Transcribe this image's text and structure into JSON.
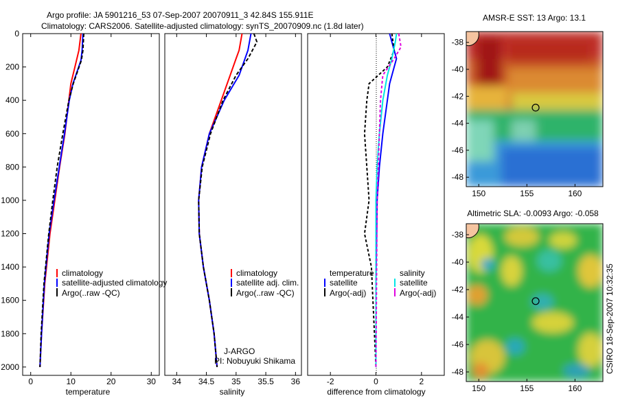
{
  "title": {
    "line1": "Argo profile: JA 5901216_53 07-Sep-2007 20070911_3 42.84S 155.911E",
    "line2": "Climatology: CARS2006. Satellite-adjusted climatology: synTS_20070909.nc (1.8d later)"
  },
  "side_text": "CSIRO 18-Sep-2007 10:32:35",
  "colors": {
    "climatology": "#ff0000",
    "satellite": "#0000ff",
    "argo": "#000000",
    "salinity_satellite": "#00e5e5",
    "salinity_argo": "#e000e0"
  },
  "chart_data": [
    {
      "type": "line",
      "xlabel": "temperature",
      "ylabel": "",
      "xlim": [
        -2,
        32
      ],
      "ylim": [
        2050,
        0
      ],
      "xticks": [
        0,
        10,
        20,
        30
      ],
      "yticks": [
        0,
        200,
        400,
        600,
        800,
        1000,
        1200,
        1400,
        1600,
        1800,
        2000
      ],
      "legend": [
        "climatology",
        "satellite-adjusted climatology",
        "Argo(..raw -QC)"
      ],
      "series": [
        {
          "name": "climatology",
          "color": "#ff0000",
          "dash": "",
          "x": [
            12.5,
            12.0,
            11.0,
            10.0,
            9.5,
            8.5,
            7.2,
            6.0,
            4.8,
            3.5,
            2.7,
            2.3
          ],
          "y": [
            0,
            100,
            200,
            300,
            400,
            600,
            800,
            1000,
            1200,
            1500,
            1800,
            2000
          ]
        },
        {
          "name": "satellite-adjusted climatology",
          "color": "#0000ff",
          "dash": "",
          "x": [
            13.0,
            12.8,
            12.5,
            10.5,
            9.6,
            8.4,
            7.1,
            5.8,
            4.6,
            3.4,
            2.7,
            2.3
          ],
          "y": [
            0,
            100,
            160,
            300,
            400,
            600,
            800,
            1000,
            1200,
            1500,
            1800,
            2000
          ]
        },
        {
          "name": "Argo(..raw -QC)",
          "color": "#000000",
          "dash": "5,3",
          "x": [
            13.2,
            13.0,
            12.6,
            10.6,
            9.5,
            8.0,
            6.6,
            5.5,
            4.5,
            3.3,
            2.6,
            2.3
          ],
          "y": [
            0,
            100,
            160,
            300,
            400,
            600,
            800,
            1000,
            1200,
            1500,
            1800,
            2000
          ]
        }
      ]
    },
    {
      "type": "line",
      "xlabel": "salinity",
      "ylabel": "",
      "xlim": [
        33.8,
        36.1
      ],
      "ylim": [
        2050,
        0
      ],
      "xticks": [
        34,
        34.5,
        35,
        35.5,
        36
      ],
      "legend": [
        "climatology",
        "satellite adj. clim.",
        "Argo(..raw -QC)"
      ],
      "annotation": [
        "J-ARGO",
        "PI: Nobuyuki Shikama"
      ],
      "series": [
        {
          "name": "climatology",
          "color": "#ff0000",
          "dash": "",
          "x": [
            35.1,
            35.05,
            35.0,
            34.9,
            34.75,
            34.55,
            34.42,
            34.37,
            34.38,
            34.45,
            34.55,
            34.63,
            34.68
          ],
          "y": [
            0,
            100,
            150,
            250,
            400,
            600,
            800,
            1000,
            1200,
            1400,
            1600,
            1800,
            2000
          ]
        },
        {
          "name": "satellite adj. clim.",
          "color": "#0000ff",
          "dash": "",
          "x": [
            35.25,
            35.2,
            35.15,
            35.05,
            34.8,
            34.55,
            34.42,
            34.37,
            34.38,
            34.45,
            34.55,
            34.63,
            34.68
          ],
          "y": [
            0,
            100,
            150,
            250,
            400,
            600,
            800,
            1000,
            1200,
            1400,
            1600,
            1800,
            2000
          ]
        },
        {
          "name": "Argo(..raw -QC)",
          "color": "#000000",
          "dash": "5,3",
          "x": [
            35.3,
            35.35,
            35.2,
            35.0,
            34.78,
            34.57,
            34.43,
            34.37,
            34.38,
            34.45,
            34.55,
            34.63,
            34.68
          ],
          "y": [
            0,
            50,
            150,
            250,
            400,
            600,
            800,
            1000,
            1200,
            1400,
            1600,
            1800,
            2000
          ]
        }
      ]
    },
    {
      "type": "line",
      "xlabel": "difference from climatology",
      "ylabel": "",
      "xlim": [
        -3,
        3
      ],
      "ylim": [
        2050,
        0
      ],
      "xticks": [
        -2,
        0,
        2
      ],
      "legend": [
        "temperature",
        "satellite",
        "Argo(-adj)",
        "salinity",
        "satellite",
        "Argo(-adj)"
      ],
      "series": [
        {
          "name": "temperature satellite",
          "color": "#0000ff",
          "dash": "",
          "x": [
            0.6,
            0.7,
            0.9,
            0.6,
            0.5,
            0.3,
            0.15,
            0.05,
            0.0,
            0.0
          ],
          "y": [
            0,
            50,
            150,
            300,
            400,
            600,
            800,
            1000,
            1500,
            2000
          ]
        },
        {
          "name": "temperature Argo(-adj)",
          "color": "#000000",
          "dash": "4,3",
          "x": [
            0.7,
            0.8,
            0.5,
            -0.3,
            -0.4,
            -0.5,
            -0.4,
            -0.3,
            -0.5,
            -0.2,
            -0.1,
            0.0
          ],
          "y": [
            0,
            100,
            200,
            300,
            400,
            600,
            800,
            1000,
            1200,
            1400,
            1700,
            2000
          ]
        },
        {
          "name": "salinity satellite",
          "color": "#00e5e5",
          "dash": "",
          "x": [
            0.9,
            0.85,
            0.7,
            0.5,
            0.3,
            0.15,
            0.05,
            0.0,
            0.0
          ],
          "y": [
            0,
            50,
            150,
            250,
            400,
            600,
            800,
            1000,
            2000
          ]
        },
        {
          "name": "salinity Argo(-adj)",
          "color": "#e000e0",
          "dash": "4,3",
          "x": [
            1.0,
            1.1,
            0.8,
            0.3,
            0.2,
            0.15,
            0.1,
            0.05,
            0.0
          ],
          "y": [
            0,
            80,
            150,
            250,
            400,
            600,
            800,
            1000,
            2000
          ]
        }
      ]
    },
    {
      "type": "heatmap",
      "title": "AMSR-E SST: 13 Argo: 13.1",
      "xlim": [
        148.7,
        162.9
      ],
      "ylim": [
        -48.7,
        -37.2
      ],
      "xticks": [
        150,
        155,
        160
      ],
      "yticks": [
        -38,
        -40,
        -42,
        -44,
        -46,
        -48
      ],
      "marker": {
        "x": 155.911,
        "y": -42.84
      }
    },
    {
      "type": "heatmap",
      "title": "Altimetric SLA: -0.0093 Argo: -0.058",
      "xlim": [
        148.7,
        162.9
      ],
      "ylim": [
        -48.7,
        -37.2
      ],
      "xticks": [
        150,
        155,
        160
      ],
      "yticks": [
        -38,
        -40,
        -42,
        -44,
        -46,
        -48
      ],
      "marker": {
        "x": 155.911,
        "y": -42.84
      }
    }
  ]
}
